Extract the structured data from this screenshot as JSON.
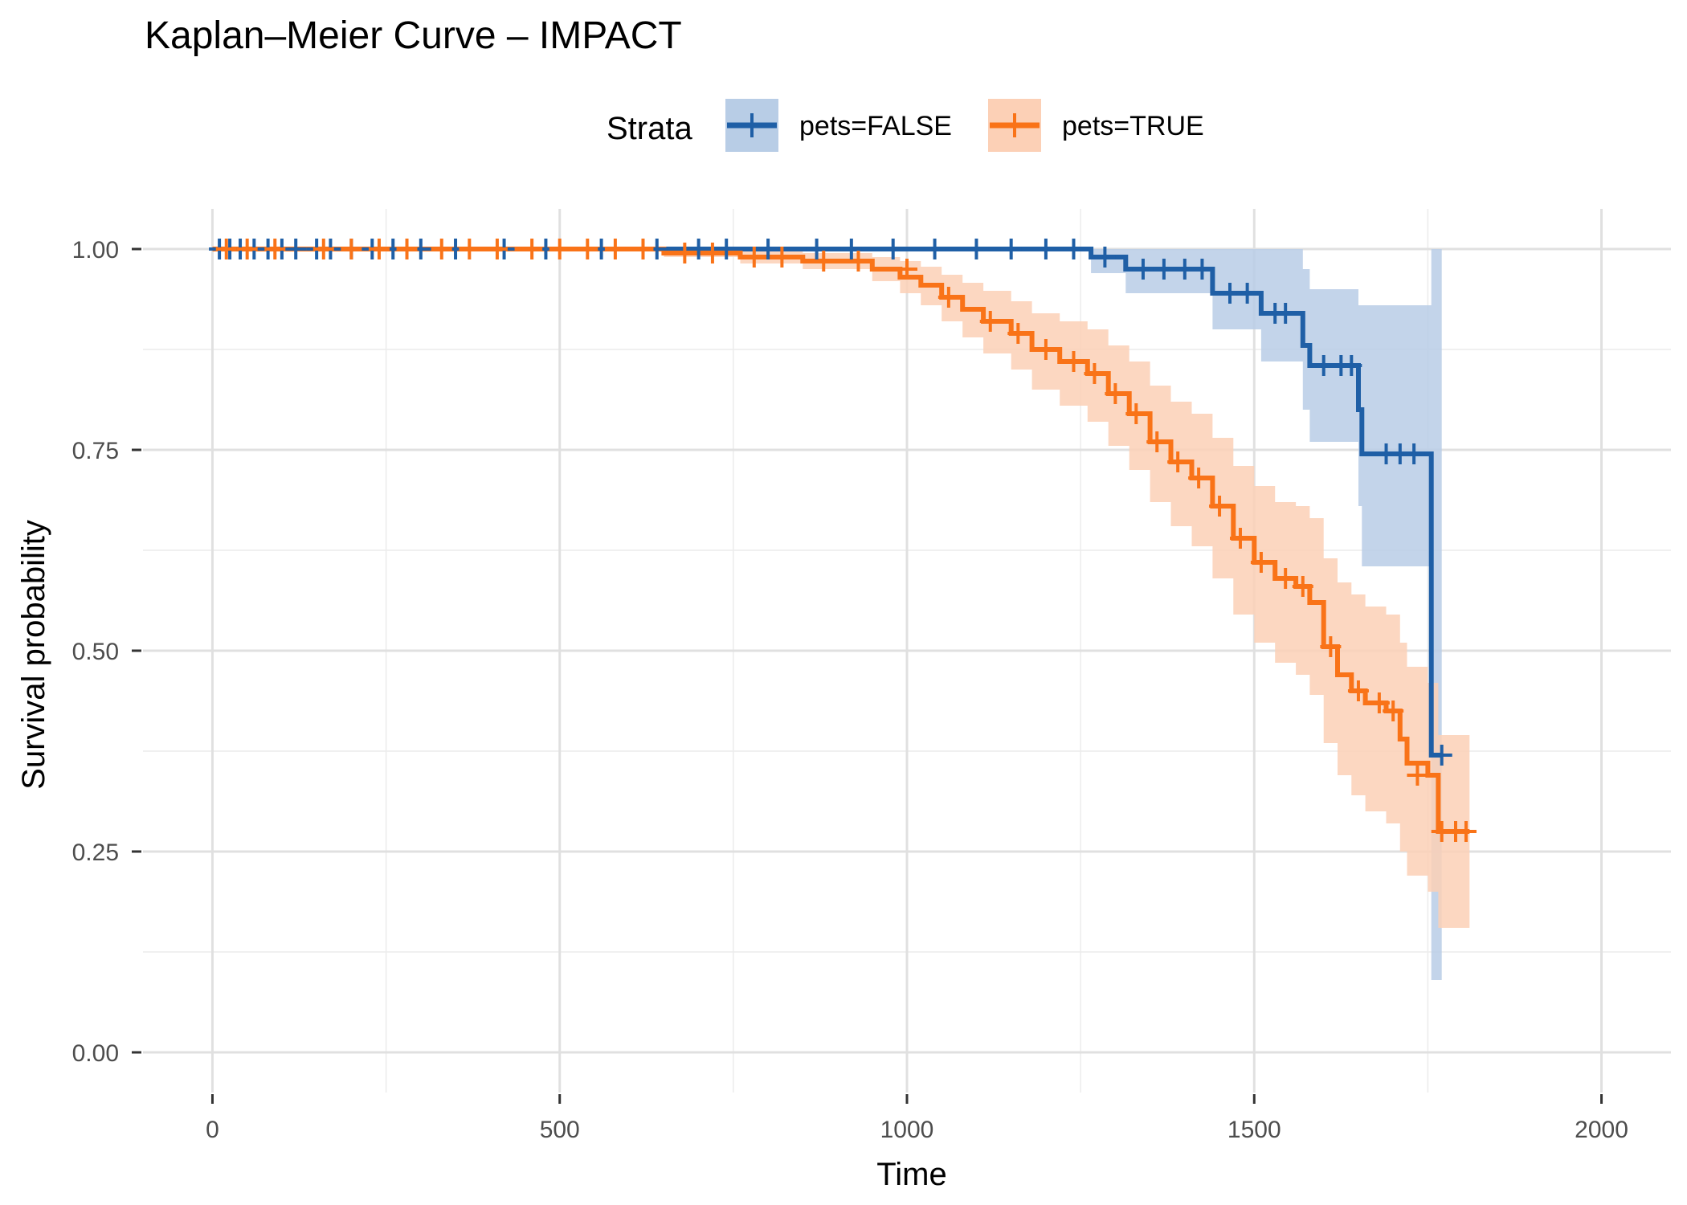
{
  "chart_data": {
    "type": "line",
    "title": "Kaplan–Meier Curve – IMPACT",
    "xlabel": "Time",
    "ylabel": "Survival probability",
    "xlim": [
      -100,
      2100
    ],
    "ylim": [
      -0.05,
      1.05
    ],
    "x_ticks": [
      0,
      500,
      1000,
      1500,
      2000
    ],
    "x_tick_labels": [
      "0",
      "500",
      "1000",
      "1500",
      "2000"
    ],
    "y_ticks": [
      0,
      0.25,
      0.5,
      0.75,
      1.0
    ],
    "y_tick_labels": [
      "0.00",
      "0.25",
      "0.50",
      "0.75",
      "1.00"
    ],
    "grid": true,
    "legend": {
      "title": "Strata",
      "position": "top",
      "entries": [
        "pets=FALSE",
        "pets=TRUE"
      ]
    },
    "series": [
      {
        "name": "pets=FALSE",
        "color": "#1f5fa6",
        "band_color": "#b8cde6",
        "x": [
          0,
          1265,
          1315,
          1440,
          1510,
          1570,
          1580,
          1650,
          1655,
          1755,
          1770
        ],
        "y": [
          1.0,
          0.99,
          0.975,
          0.945,
          0.92,
          0.88,
          0.855,
          0.8,
          0.745,
          0.37,
          0.37
        ],
        "lower": [
          1.0,
          0.97,
          0.945,
          0.9,
          0.86,
          0.8,
          0.76,
          0.68,
          0.605,
          0.09,
          0.09
        ],
        "upper": [
          1.0,
          1.0,
          1.0,
          1.0,
          1.0,
          0.975,
          0.95,
          0.93,
          0.93,
          1.0,
          1.0
        ],
        "censor_x": [
          10,
          25,
          40,
          60,
          80,
          100,
          120,
          150,
          170,
          200,
          230,
          260,
          300,
          350,
          420,
          480,
          560,
          640,
          700,
          740,
          800,
          870,
          920,
          980,
          1040,
          1100,
          1150,
          1200,
          1240,
          1285,
          1340,
          1370,
          1400,
          1425,
          1465,
          1490,
          1530,
          1545,
          1600,
          1625,
          1640,
          1690,
          1710,
          1730,
          1770
        ],
        "censor_y": [
          1.0,
          1.0,
          1.0,
          1.0,
          1.0,
          1.0,
          1.0,
          1.0,
          1.0,
          1.0,
          1.0,
          1.0,
          1.0,
          1.0,
          1.0,
          1.0,
          1.0,
          1.0,
          1.0,
          1.0,
          1.0,
          1.0,
          1.0,
          1.0,
          1.0,
          1.0,
          1.0,
          1.0,
          1.0,
          0.99,
          0.975,
          0.975,
          0.975,
          0.975,
          0.945,
          0.945,
          0.92,
          0.92,
          0.855,
          0.855,
          0.855,
          0.745,
          0.745,
          0.745,
          0.37
        ]
      },
      {
        "name": "pets=TRUE",
        "color": "#f97318",
        "band_color": "#fcd0b6",
        "x": [
          0,
          650,
          760,
          850,
          950,
          990,
          1020,
          1050,
          1080,
          1110,
          1150,
          1180,
          1220,
          1260,
          1290,
          1320,
          1350,
          1380,
          1410,
          1440,
          1470,
          1500,
          1530,
          1560,
          1580,
          1600,
          1620,
          1640,
          1660,
          1690,
          1710,
          1720,
          1750,
          1765,
          1780,
          1810
        ],
        "y": [
          1.0,
          0.995,
          0.99,
          0.985,
          0.975,
          0.965,
          0.955,
          0.94,
          0.925,
          0.91,
          0.895,
          0.875,
          0.86,
          0.845,
          0.82,
          0.795,
          0.76,
          0.735,
          0.715,
          0.68,
          0.64,
          0.61,
          0.59,
          0.58,
          0.56,
          0.505,
          0.47,
          0.45,
          0.435,
          0.425,
          0.39,
          0.36,
          0.345,
          0.275,
          0.275,
          0.275
        ],
        "lower": [
          1.0,
          0.99,
          0.982,
          0.975,
          0.96,
          0.945,
          0.93,
          0.91,
          0.89,
          0.87,
          0.85,
          0.825,
          0.805,
          0.785,
          0.755,
          0.725,
          0.685,
          0.655,
          0.63,
          0.59,
          0.545,
          0.51,
          0.485,
          0.47,
          0.445,
          0.385,
          0.345,
          0.32,
          0.3,
          0.285,
          0.25,
          0.22,
          0.2,
          0.155,
          0.155,
          0.155
        ],
        "upper": [
          1.0,
          1.0,
          1.0,
          0.995,
          0.99,
          0.985,
          0.978,
          0.968,
          0.958,
          0.948,
          0.935,
          0.92,
          0.91,
          0.9,
          0.88,
          0.86,
          0.83,
          0.81,
          0.795,
          0.765,
          0.73,
          0.705,
          0.685,
          0.68,
          0.665,
          0.615,
          0.585,
          0.57,
          0.555,
          0.545,
          0.51,
          0.48,
          0.46,
          0.395,
          0.395,
          0.395
        ],
        "censor_x": [
          20,
          50,
          90,
          160,
          200,
          240,
          280,
          330,
          370,
          410,
          460,
          500,
          540,
          580,
          620,
          680,
          720,
          780,
          820,
          880,
          930,
          1000,
          1060,
          1120,
          1160,
          1200,
          1240,
          1270,
          1300,
          1330,
          1360,
          1390,
          1420,
          1450,
          1480,
          1510,
          1545,
          1570,
          1610,
          1650,
          1680,
          1700,
          1735,
          1770,
          1790,
          1805
        ],
        "censor_y": [
          1.0,
          1.0,
          1.0,
          1.0,
          1.0,
          1.0,
          1.0,
          1.0,
          1.0,
          1.0,
          1.0,
          1.0,
          1.0,
          1.0,
          1.0,
          0.995,
          0.995,
          0.99,
          0.99,
          0.985,
          0.985,
          0.975,
          0.94,
          0.91,
          0.895,
          0.875,
          0.86,
          0.845,
          0.82,
          0.795,
          0.76,
          0.735,
          0.715,
          0.68,
          0.64,
          0.61,
          0.59,
          0.58,
          0.505,
          0.45,
          0.435,
          0.425,
          0.345,
          0.275,
          0.275,
          0.275
        ]
      }
    ]
  }
}
